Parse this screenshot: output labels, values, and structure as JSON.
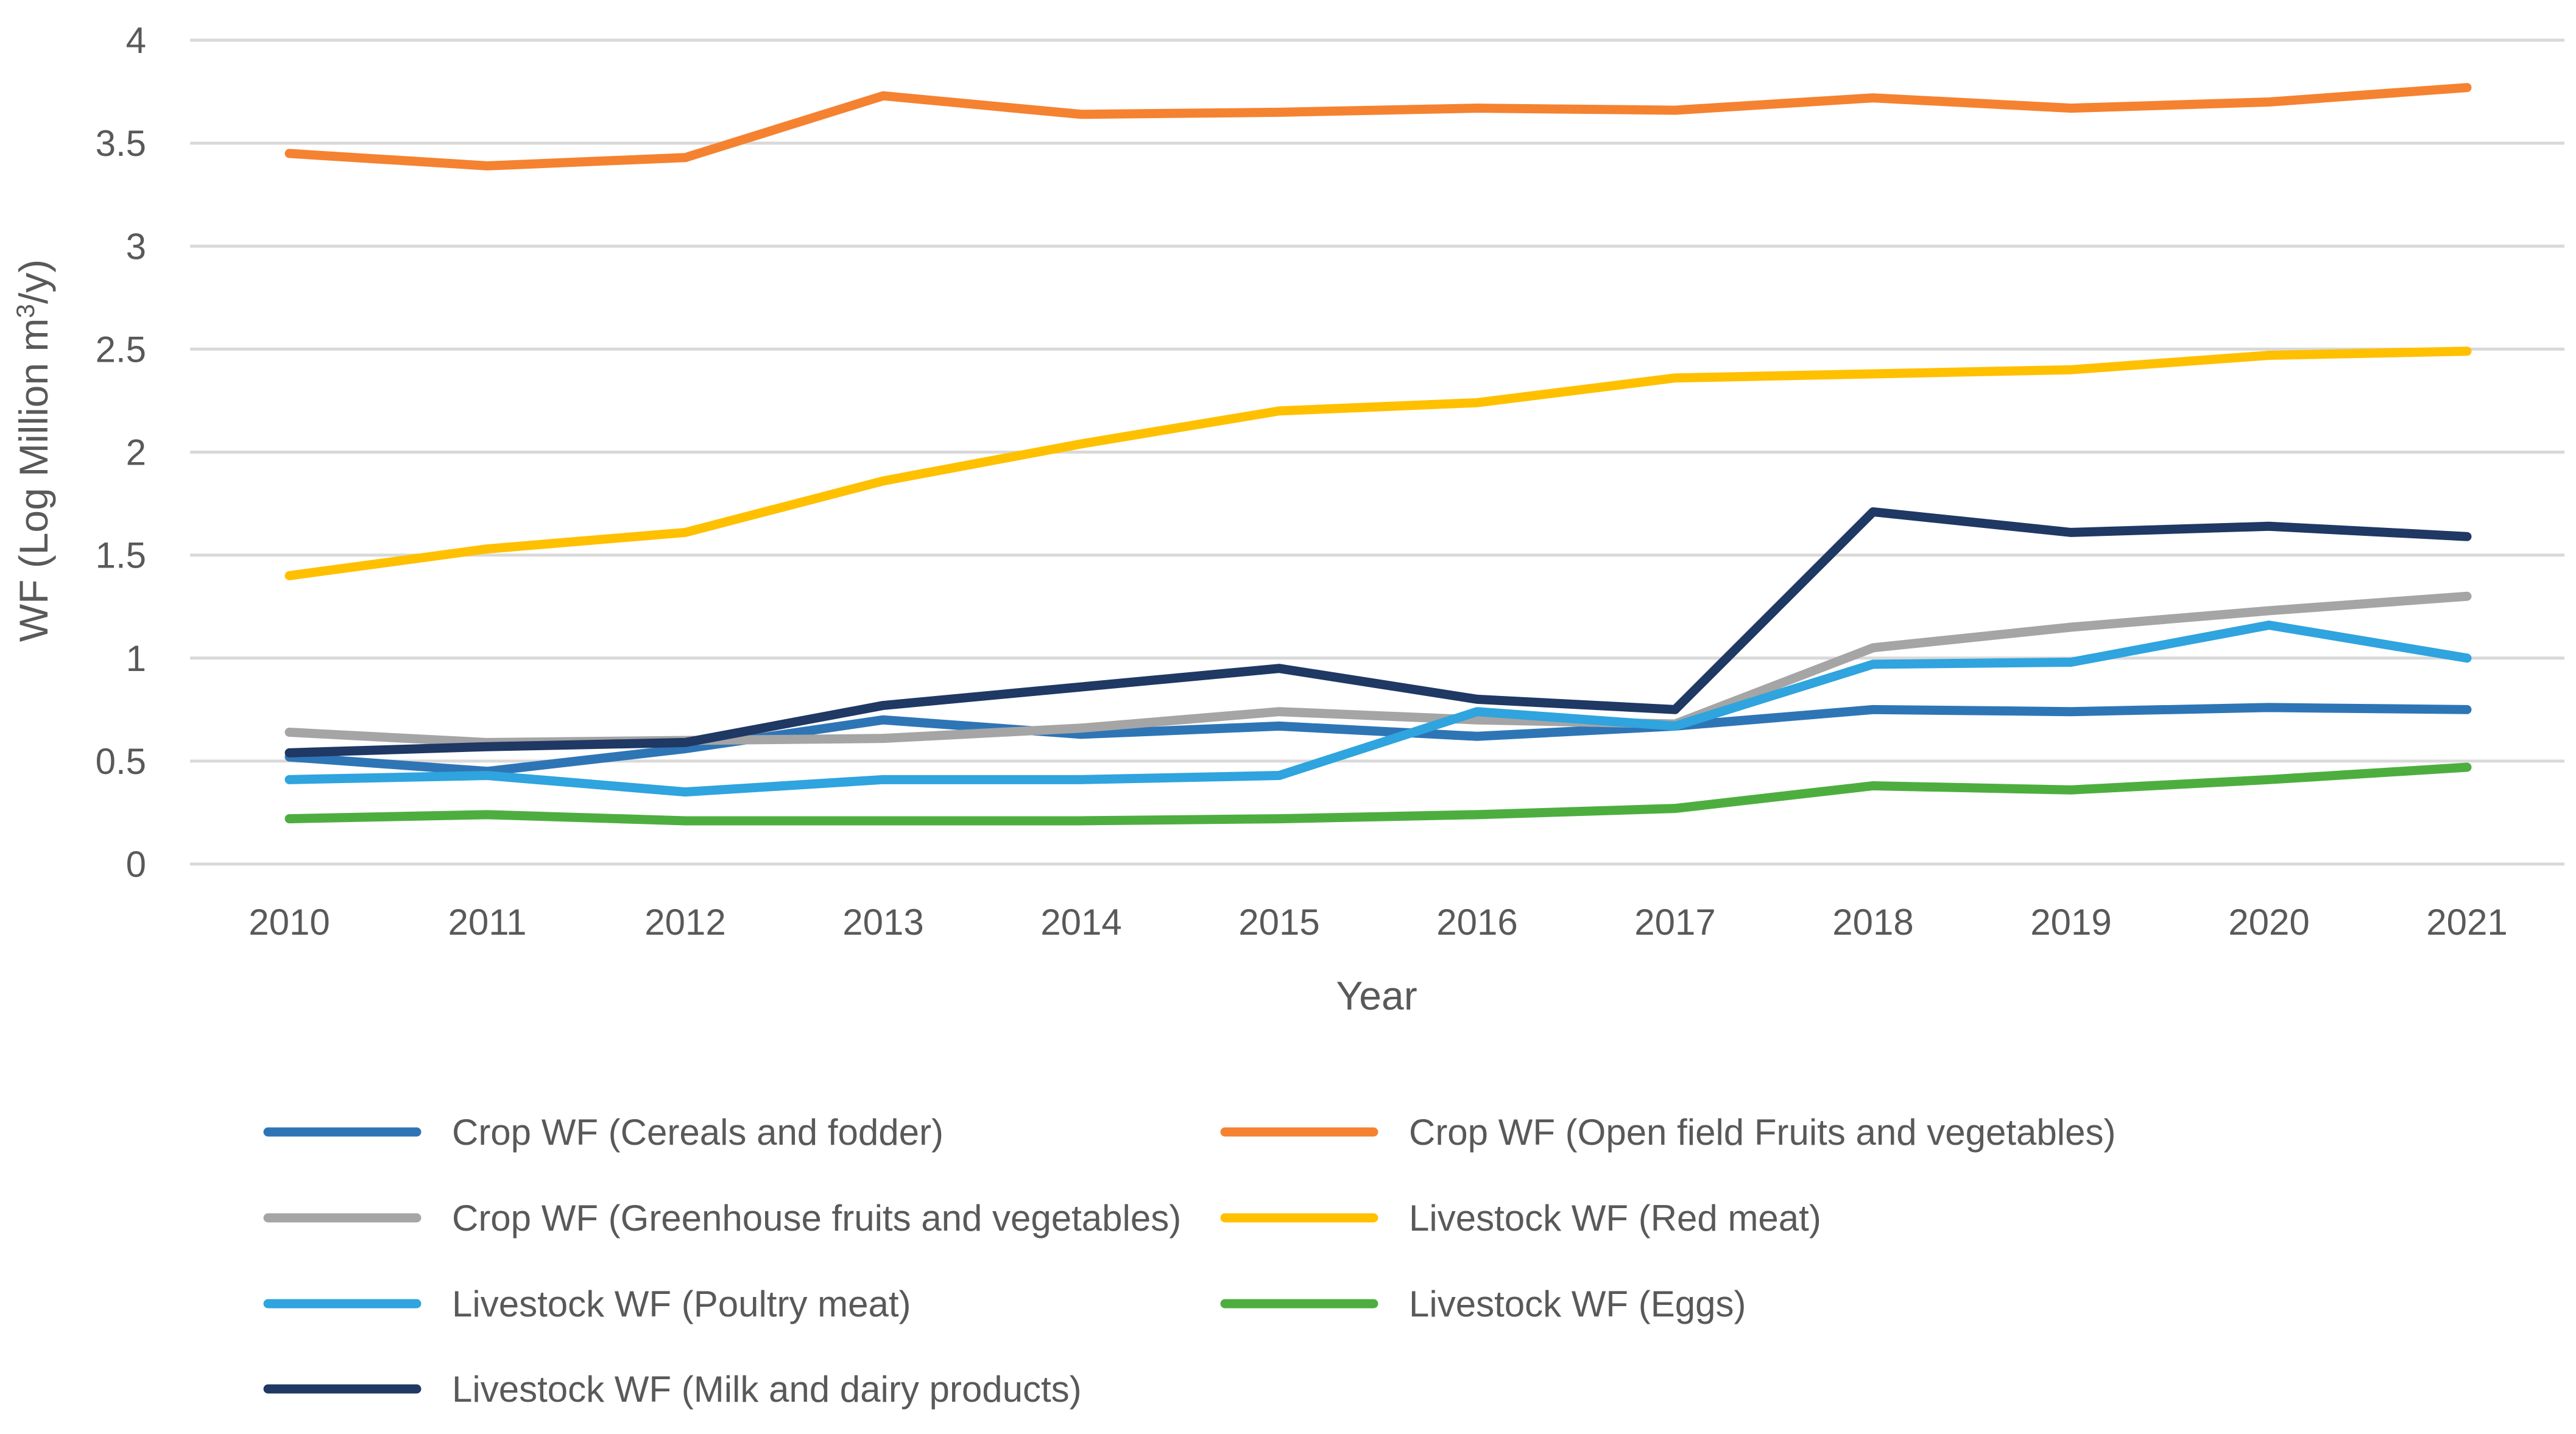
{
  "chart_data": {
    "type": "line",
    "title": "",
    "xlabel": "Year",
    "ylabel_prefix": "WF (Log Million m",
    "ylabel_sup": "3",
    "ylabel_suffix": "/y)",
    "ylim": [
      0,
      4
    ],
    "yticks": [
      "0",
      "0.5",
      "1",
      "1.5",
      "2",
      "2.5",
      "3",
      "3.5",
      "4"
    ],
    "grid": true,
    "legend_position": "bottom",
    "categories": [
      "2010",
      "2011",
      "2012",
      "2013",
      "2014",
      "2015",
      "2016",
      "2017",
      "2018",
      "2019",
      "2020",
      "2021"
    ],
    "series": [
      {
        "name": "Crop WF (Cereals and fodder)",
        "color": "#2E75B6",
        "values": [
          0.52,
          0.45,
          0.56,
          0.7,
          0.63,
          0.67,
          0.62,
          0.67,
          0.75,
          0.74,
          0.76,
          0.75
        ]
      },
      {
        "name": "Crop WF (Open field Fruits and vegetables)",
        "color": "#F58230",
        "values": [
          3.45,
          3.39,
          3.43,
          3.73,
          3.64,
          3.65,
          3.67,
          3.66,
          3.72,
          3.67,
          3.7,
          3.77
        ]
      },
      {
        "name": "Crop WF (Greenhouse fruits and vegetables)",
        "color": "#A5A5A5",
        "values": [
          0.64,
          0.59,
          0.6,
          0.61,
          0.66,
          0.74,
          0.7,
          0.68,
          1.05,
          1.15,
          1.23,
          1.3
        ]
      },
      {
        "name": "Livestock WF (Red meat)",
        "color": "#FFC000",
        "values": [
          1.4,
          1.53,
          1.61,
          1.86,
          2.04,
          2.2,
          2.24,
          2.36,
          2.38,
          2.4,
          2.47,
          2.49
        ]
      },
      {
        "name": "Livestock WF (Poultry meat)",
        "color": "#2FA4DE",
        "values": [
          0.41,
          0.43,
          0.35,
          0.41,
          0.41,
          0.43,
          0.74,
          0.67,
          0.97,
          0.98,
          1.16,
          1.0
        ]
      },
      {
        "name": "Livestock WF (Eggs)",
        "color": "#4DAE3F",
        "values": [
          0.22,
          0.24,
          0.21,
          0.21,
          0.21,
          0.22,
          0.24,
          0.27,
          0.38,
          0.36,
          0.41,
          0.47
        ]
      },
      {
        "name": "Livestock WF (Milk and dairy products)",
        "color": "#1F3864",
        "values": [
          0.54,
          0.57,
          0.59,
          0.77,
          0.86,
          0.95,
          0.8,
          0.75,
          1.71,
          1.61,
          1.64,
          1.59
        ]
      }
    ]
  }
}
